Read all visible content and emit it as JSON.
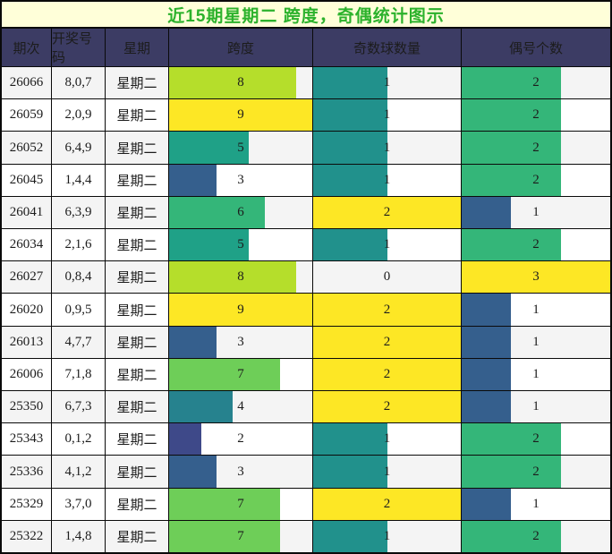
{
  "title": {
    "text": "近15期星期二 跨度，奇偶统计图示",
    "color": "#2cb22c",
    "background": "#ffffd9"
  },
  "table": {
    "header_background": "#3c3c64",
    "header_text_color": "#ffffff",
    "row_background": "#ffffff",
    "row_alt_background": "#f4f4f4",
    "grid_color": "#0a0a0a",
    "columns": [
      {
        "key": "period",
        "label": "期次"
      },
      {
        "key": "numbers",
        "label": "开奖号码"
      },
      {
        "key": "week",
        "label": "星期"
      },
      {
        "key": "span",
        "label": "跨度"
      },
      {
        "key": "odd",
        "label": "奇数球数量"
      },
      {
        "key": "even",
        "label": "偶号个数"
      }
    ],
    "rows": [
      {
        "period": "26066",
        "numbers": "8,0,7",
        "week": "星期二",
        "span": 8,
        "odd": 1,
        "even": 2
      },
      {
        "period": "26059",
        "numbers": "2,0,9",
        "week": "星期二",
        "span": 9,
        "odd": 1,
        "even": 2
      },
      {
        "period": "26052",
        "numbers": "6,4,9",
        "week": "星期二",
        "span": 5,
        "odd": 1,
        "even": 2
      },
      {
        "period": "26045",
        "numbers": "1,4,4",
        "week": "星期二",
        "span": 3,
        "odd": 1,
        "even": 2
      },
      {
        "period": "26041",
        "numbers": "6,3,9",
        "week": "星期二",
        "span": 6,
        "odd": 2,
        "even": 1
      },
      {
        "period": "26034",
        "numbers": "2,1,6",
        "week": "星期二",
        "span": 5,
        "odd": 1,
        "even": 2
      },
      {
        "period": "26027",
        "numbers": "0,8,4",
        "week": "星期二",
        "span": 8,
        "odd": 0,
        "even": 3
      },
      {
        "period": "26020",
        "numbers": "0,9,5",
        "week": "星期二",
        "span": 9,
        "odd": 2,
        "even": 1
      },
      {
        "period": "26013",
        "numbers": "4,7,7",
        "week": "星期二",
        "span": 3,
        "odd": 2,
        "even": 1
      },
      {
        "period": "26006",
        "numbers": "7,1,8",
        "week": "星期二",
        "span": 7,
        "odd": 2,
        "even": 1
      },
      {
        "period": "25350",
        "numbers": "6,7,3",
        "week": "星期二",
        "span": 4,
        "odd": 2,
        "even": 1
      },
      {
        "period": "25343",
        "numbers": "0,1,2",
        "week": "星期二",
        "span": 2,
        "odd": 1,
        "even": 2
      },
      {
        "period": "25336",
        "numbers": "4,1,2",
        "week": "星期二",
        "span": 3,
        "odd": 1,
        "even": 2
      },
      {
        "period": "25329",
        "numbers": "3,7,0",
        "week": "星期二",
        "span": 7,
        "odd": 2,
        "even": 1
      },
      {
        "period": "25322",
        "numbers": "1,4,8",
        "week": "星期二",
        "span": 7,
        "odd": 1,
        "even": 2
      }
    ]
  },
  "chart_data": {
    "type": "bar",
    "title": "近15期星期二 跨度，奇偶统计图示",
    "orientation": "horizontal-in-table-cells",
    "colormap": "viridis",
    "categories": [
      "26066",
      "26059",
      "26052",
      "26045",
      "26041",
      "26034",
      "26027",
      "26020",
      "26013",
      "26006",
      "25350",
      "25343",
      "25336",
      "25329",
      "25322"
    ],
    "series": [
      {
        "name": "跨度",
        "values": [
          8,
          9,
          5,
          3,
          6,
          5,
          8,
          9,
          3,
          7,
          4,
          2,
          3,
          7,
          7
        ],
        "max": 9
      },
      {
        "name": "奇数球数量",
        "values": [
          1,
          1,
          1,
          1,
          2,
          1,
          0,
          2,
          2,
          2,
          2,
          1,
          1,
          2,
          1
        ],
        "max": 2
      },
      {
        "name": "偶号个数",
        "values": [
          2,
          2,
          2,
          2,
          1,
          2,
          3,
          1,
          1,
          1,
          1,
          2,
          2,
          1,
          2
        ],
        "max": 3
      }
    ],
    "maxima": {
      "span": 9,
      "odd": 2,
      "even": 3
    },
    "palette": {
      "span": {
        "2": "#3e4989",
        "3": "#355f8d",
        "4": "#26828e",
        "5": "#1fa187",
        "6": "#34b679",
        "7": "#6ece58",
        "8": "#b5de2b",
        "9": "#fde725"
      },
      "odd": {
        "1": "#21918c",
        "2": "#fde725"
      },
      "even": {
        "1": "#355f8d",
        "2": "#34b679",
        "3": "#fde725"
      }
    }
  }
}
